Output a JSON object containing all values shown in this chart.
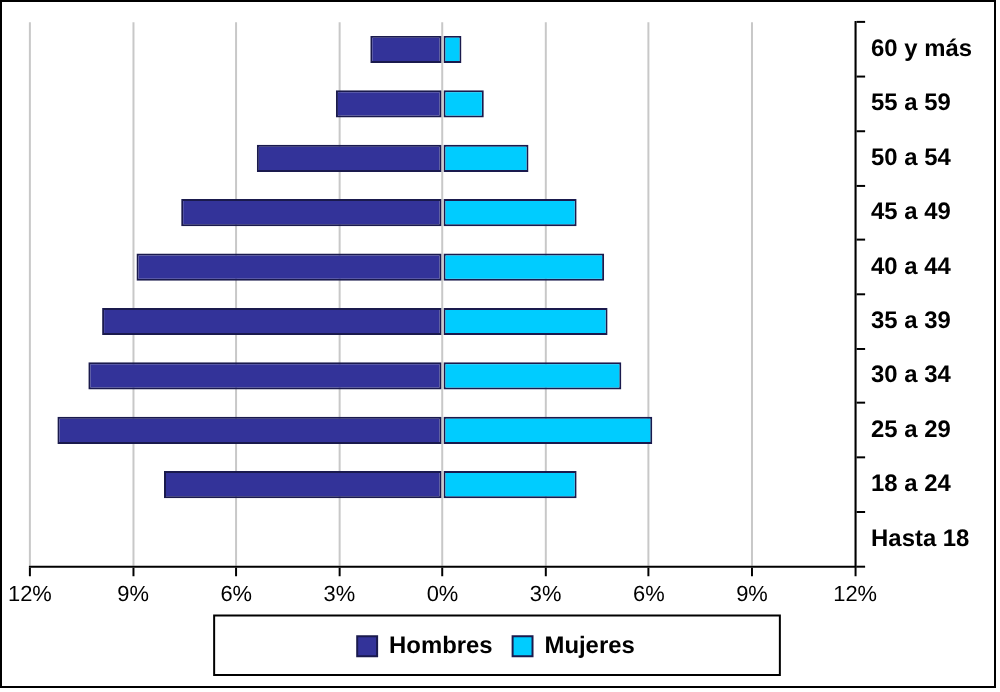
{
  "chart_data": {
    "type": "bar",
    "orientation": "horizontal",
    "stacked": true,
    "categories": [
      "60 y más",
      "55 a 59",
      "50 a 54",
      "45 a 49",
      "40 a 44",
      "35 a 39",
      "30 a 34",
      "25 a 29",
      "18 a 24",
      "Hasta 18"
    ],
    "series": [
      {
        "name": "Hombres",
        "color": "#333399",
        "values": [
          -2.1,
          -3.1,
          -5.4,
          -7.6,
          -8.9,
          -9.9,
          -10.3,
          -11.2,
          -8.1,
          null
        ]
      },
      {
        "name": "Mujeres",
        "color": "#00ccff",
        "values": [
          0.55,
          1.2,
          2.5,
          3.9,
          4.7,
          4.8,
          5.2,
          6.1,
          3.9,
          null
        ]
      }
    ],
    "xlim": [
      -12,
      12
    ],
    "xticks": [
      {
        "value": -12,
        "label": "12%"
      },
      {
        "value": -9,
        "label": "9%"
      },
      {
        "value": -6,
        "label": "6%"
      },
      {
        "value": -3,
        "label": "3%"
      },
      {
        "value": 0,
        "label": "0%"
      },
      {
        "value": 3,
        "label": "3%"
      },
      {
        "value": 6,
        "label": "6%"
      },
      {
        "value": 9,
        "label": "9%"
      },
      {
        "value": 12,
        "label": "12%"
      }
    ],
    "grid": "x",
    "legend": "bottom"
  }
}
